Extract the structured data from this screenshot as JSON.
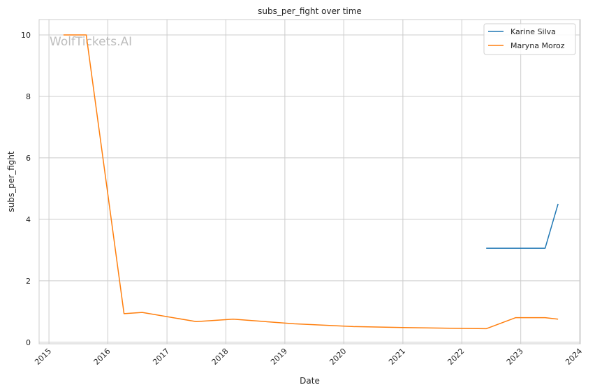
{
  "chart_data": {
    "type": "line",
    "title": "subs_per_fight over time",
    "xlabel": "Date",
    "ylabel": "subs_per_fight",
    "watermark": "WolfTickets.AI",
    "x_ticks": [
      "2015",
      "2016",
      "2017",
      "2018",
      "2019",
      "2020",
      "2021",
      "2022",
      "2023",
      "2024"
    ],
    "y_ticks": [
      "0",
      "2",
      "4",
      "6",
      "8",
      "10"
    ],
    "xlim": [
      "2014-11-01",
      "2024-01-05"
    ],
    "ylim": [
      -0.05,
      10.5
    ],
    "grid": true,
    "legend_position": "top-right",
    "series": [
      {
        "name": "Karine Silva",
        "color": "#1f77b4",
        "points": [
          {
            "x": "2022-06-01",
            "y": 3.06
          },
          {
            "x": "2023-06-01",
            "y": 3.06
          },
          {
            "x": "2023-08-20",
            "y": 4.5
          }
        ]
      },
      {
        "name": "Maryna Moroz",
        "color": "#ff7f0e",
        "points": [
          {
            "x": "2015-04-01",
            "y": 10.0
          },
          {
            "x": "2015-08-20",
            "y": 10.0
          },
          {
            "x": "2016-04-10",
            "y": 0.93
          },
          {
            "x": "2016-08-01",
            "y": 0.97
          },
          {
            "x": "2017-07-01",
            "y": 0.67
          },
          {
            "x": "2018-02-15",
            "y": 0.75
          },
          {
            "x": "2019-03-01",
            "y": 0.6
          },
          {
            "x": "2020-03-01",
            "y": 0.51
          },
          {
            "x": "2021-01-01",
            "y": 0.48
          },
          {
            "x": "2022-01-01",
            "y": 0.45
          },
          {
            "x": "2022-06-01",
            "y": 0.44
          },
          {
            "x": "2022-12-01",
            "y": 0.8
          },
          {
            "x": "2023-06-01",
            "y": 0.8
          },
          {
            "x": "2023-08-20",
            "y": 0.75
          }
        ]
      }
    ]
  }
}
